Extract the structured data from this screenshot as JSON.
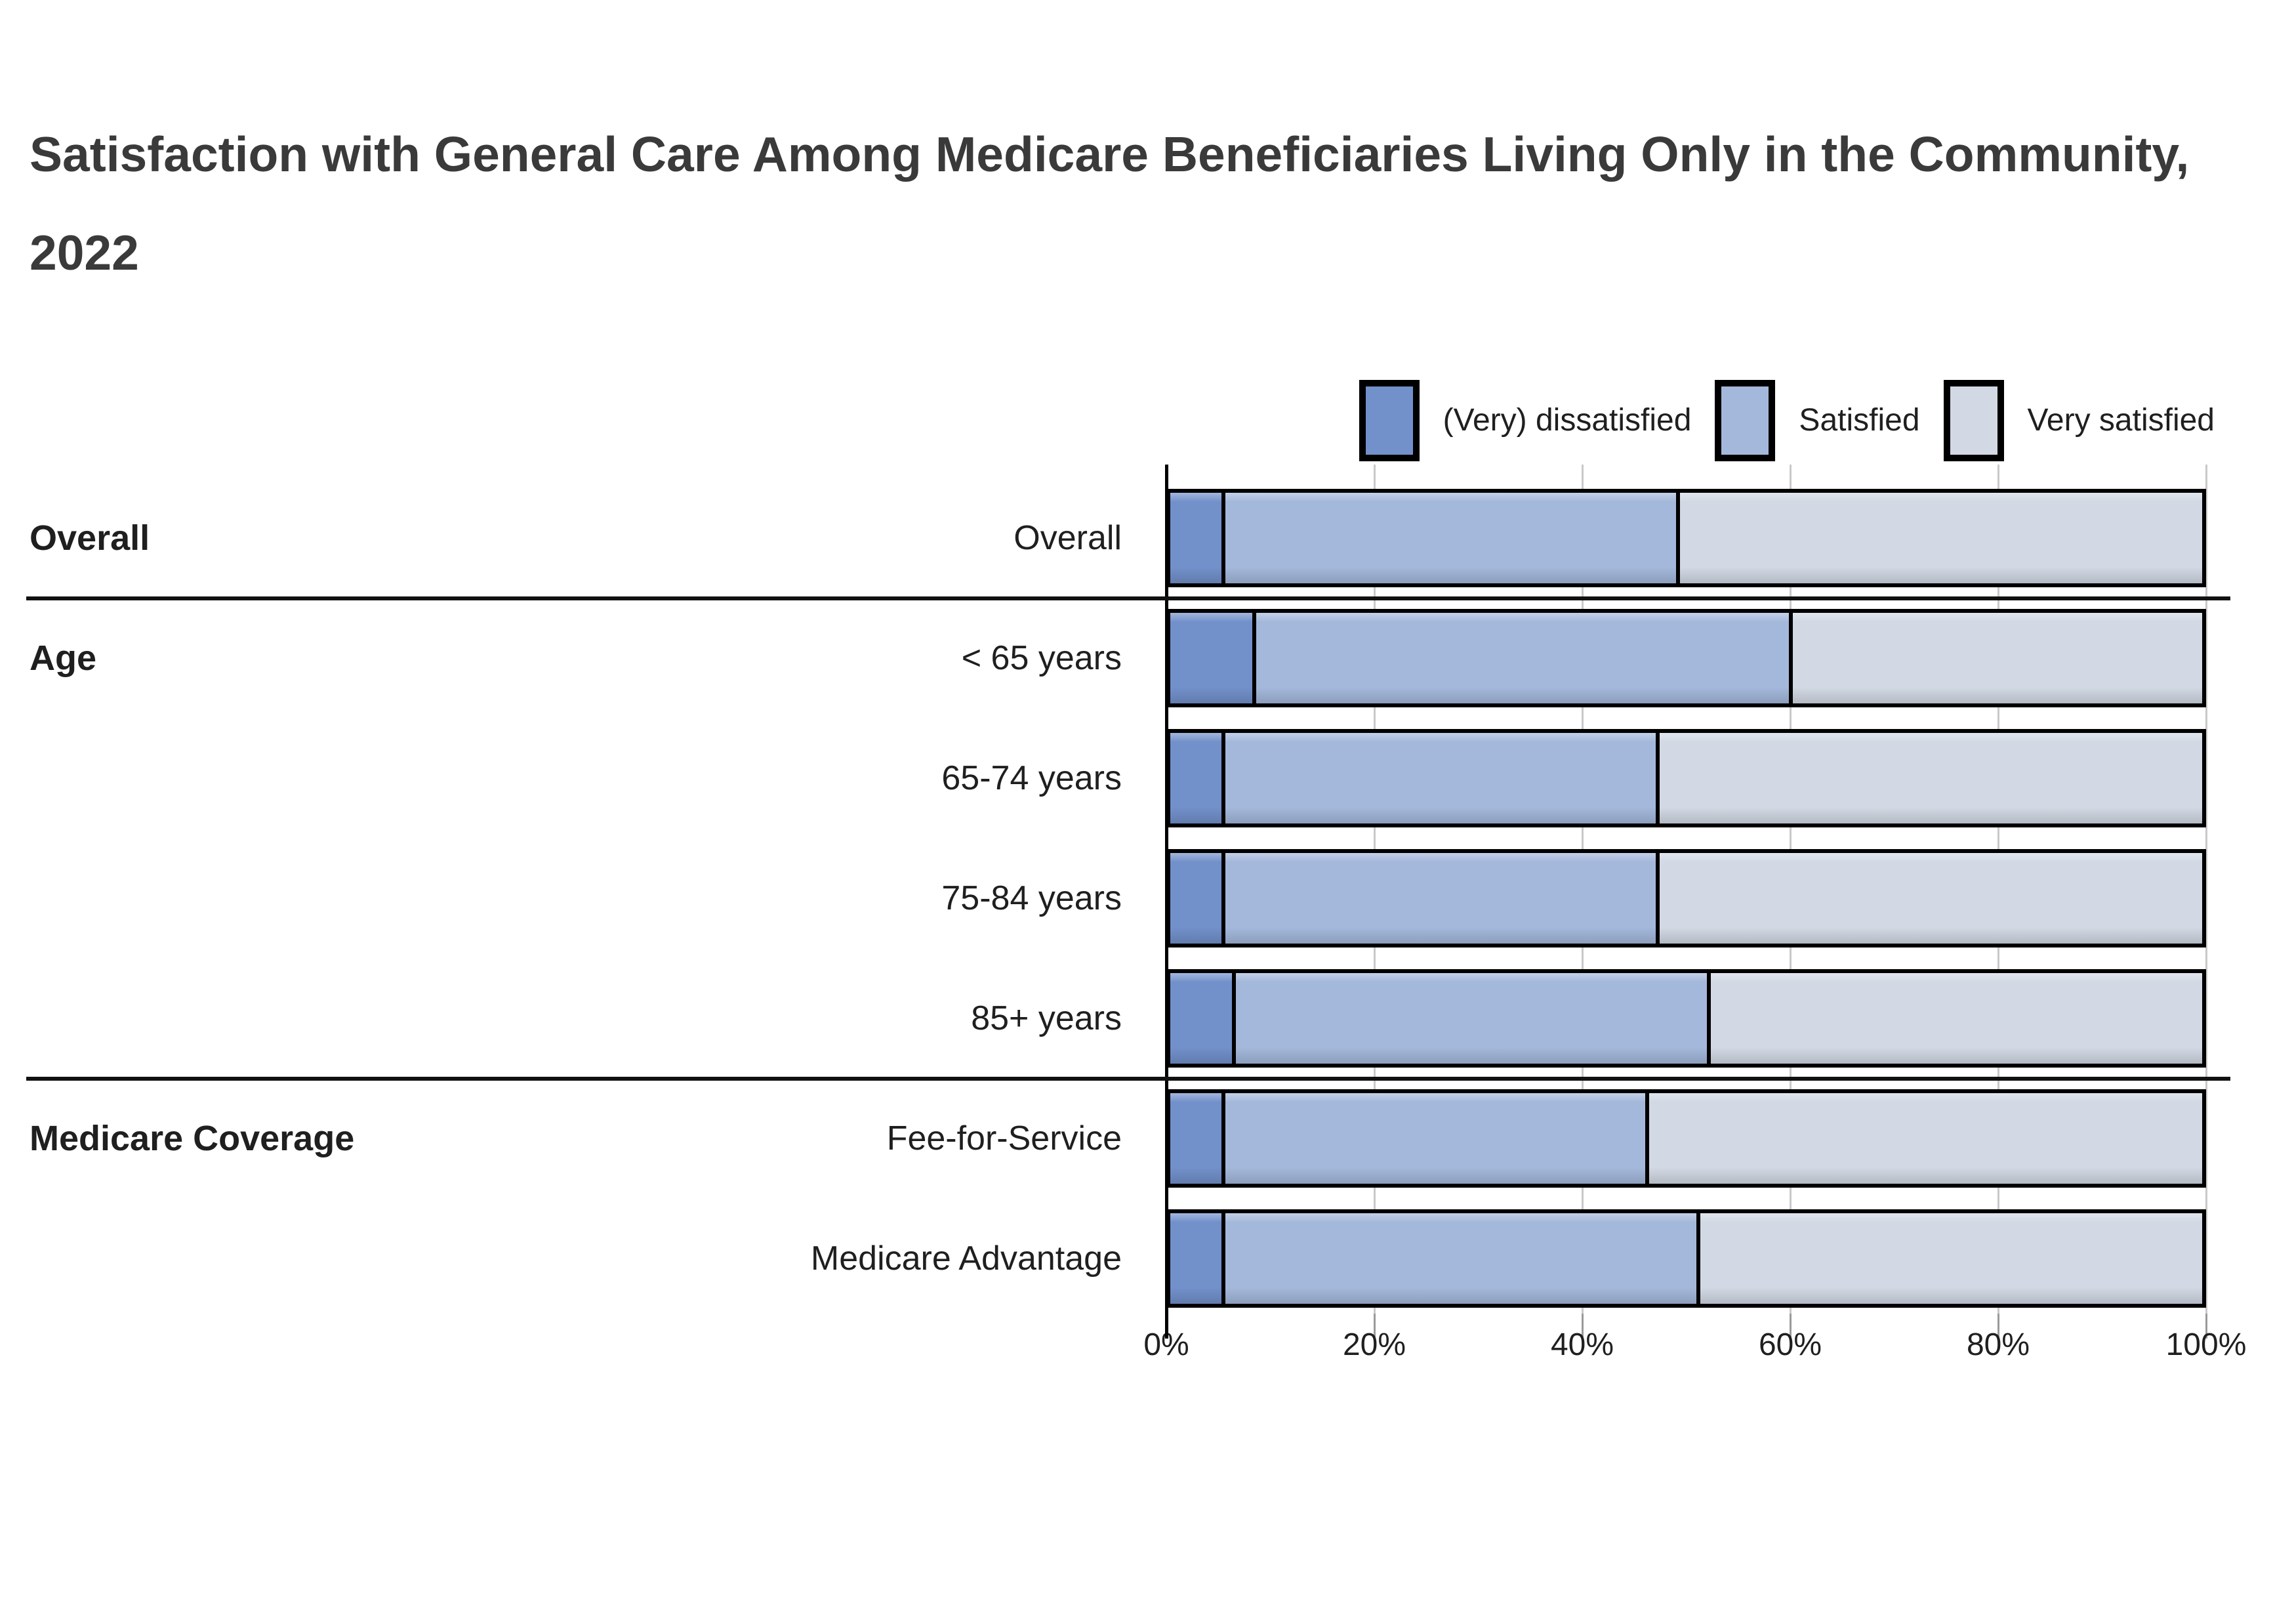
{
  "page": {
    "title": "Satisfaction with General Care Among Medicare Beneficiaries Living Only in the Community, 2022"
  },
  "colors": {
    "dissatisfied": "#7290CA",
    "satisfied": "#A4B8DB",
    "very_satisfied": "#D2D9E4",
    "bar_border": "#000000",
    "gridline": "#C9C9C9",
    "tick": "#9A9A9A",
    "axis": "#000000",
    "title_text": "#3A3A3A",
    "label_text": "#1F1F1F"
  },
  "legend": {
    "items": [
      {
        "label": "(Very) dissatisfied",
        "series": "dissatisfied"
      },
      {
        "label": "Satisfied",
        "series": "satisfied"
      },
      {
        "label": "Very satisfied",
        "series": "very_satisfied"
      }
    ]
  },
  "chart_data": {
    "type": "bar",
    "subtype": "horizontal-stacked-100percent",
    "title": "Satisfaction with General Care Among Medicare Beneficiaries Living Only in the Community, 2022",
    "legend_position": "top-right",
    "series_order": [
      "dissatisfied",
      "satisfied",
      "very_satisfied"
    ],
    "series_labels": [
      "(Very) dissatisfied",
      "Satisfied",
      "Very satisfied"
    ],
    "x_axis": {
      "ticks": [
        "0%",
        "20%",
        "40%",
        "60%",
        "80%",
        "100%"
      ],
      "range": [
        0,
        100
      ],
      "grid": true
    },
    "sections": [
      {
        "label": "Overall",
        "rows": [
          {
            "label": "Overall",
            "values": {
              "dissatisfied": 5,
              "satisfied": 44,
              "very_satisfied": 51
            }
          }
        ]
      },
      {
        "label": "Age",
        "rows": [
          {
            "label": "< 65 years",
            "values": {
              "dissatisfied": 8,
              "satisfied": 52,
              "very_satisfied": 40
            }
          },
          {
            "label": "65-74 years",
            "values": {
              "dissatisfied": 5,
              "satisfied": 42,
              "very_satisfied": 53
            }
          },
          {
            "label": "75-84 years",
            "values": {
              "dissatisfied": 5,
              "satisfied": 42,
              "very_satisfied": 53
            }
          },
          {
            "label": "85+ years",
            "values": {
              "dissatisfied": 6,
              "satisfied": 46,
              "very_satisfied": 48
            }
          }
        ]
      },
      {
        "label": "Medicare Coverage",
        "rows": [
          {
            "label": "Fee-for-Service",
            "values": {
              "dissatisfied": 5,
              "satisfied": 41,
              "very_satisfied": 54
            }
          },
          {
            "label": "Medicare Advantage",
            "values": {
              "dissatisfied": 5,
              "satisfied": 46,
              "very_satisfied": 49
            }
          }
        ]
      }
    ]
  }
}
